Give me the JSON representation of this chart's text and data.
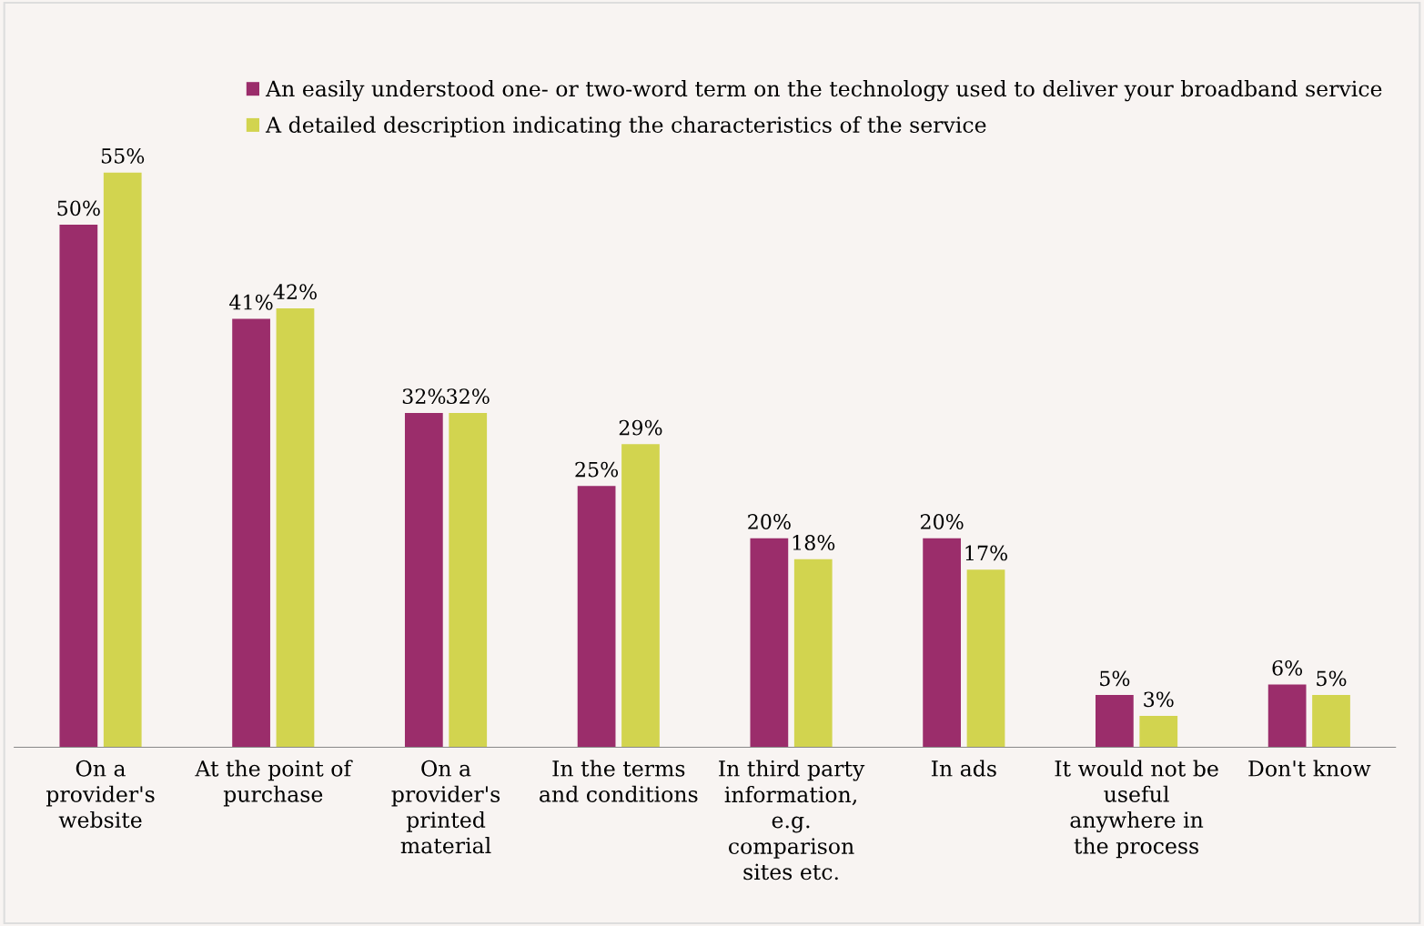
{
  "chart_data": {
    "type": "bar",
    "categories": [
      "On a\nprovider's\nwebsite",
      "At the point of\npurchase",
      "On a\nprovider's\nprinted\nmaterial",
      "In the terms\nand conditions",
      "In third party\ninformation,\ne.g.\ncomparison\nsites etc.",
      "In ads",
      "It would not be\nuseful\nanywhere in\nthe process",
      "Don't know"
    ],
    "series": [
      {
        "name": "An easily understood one- or two-word term on the technology used to deliver your broadband service",
        "color": "#9b2d6b",
        "values": [
          50,
          41,
          32,
          25,
          20,
          20,
          5,
          6
        ],
        "value_labels": [
          "50%",
          "41%",
          "32%",
          "25%",
          "20%",
          "20%",
          "5%",
          "6%"
        ]
      },
      {
        "name": "A detailed description indicating the characteristics of the service",
        "color": "#d2d44f",
        "values": [
          55,
          42,
          32,
          29,
          18,
          17,
          3,
          5
        ],
        "value_labels": [
          "55%",
          "42%",
          "32%",
          "29%",
          "18%",
          "17%",
          "3%",
          "5%"
        ]
      }
    ],
    "legend": "top right",
    "grid": false
  }
}
